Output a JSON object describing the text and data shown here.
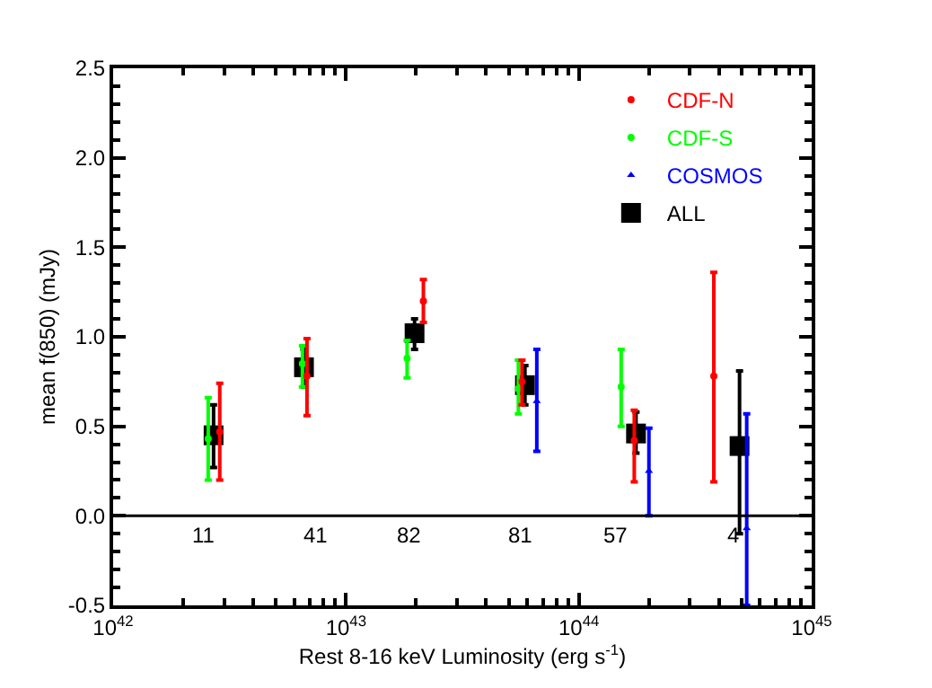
{
  "chart_data": {
    "type": "scatter",
    "xlabel": "Rest 8-16 keV Luminosity (erg s$^{-1}$)",
    "ylabel": "mean f(850) (mJy)",
    "log": "x",
    "legend": "top right",
    "xlim": [
      1e+42,
      1e+45
    ],
    "xticks": [
      {
        "value": 1e+42,
        "label": "10$^{42}$"
      },
      {
        "value": 1e+43,
        "label": "10$^{43}$"
      },
      {
        "value": 1e+44,
        "label": "10$^{44}$"
      },
      {
        "value": 1e+45,
        "label": "10$^{45}$"
      }
    ],
    "ylim": [
      -0.5,
      2.5
    ],
    "yticks": [
      {
        "value": -0.5,
        "label": "-0.5"
      },
      {
        "value": 0,
        "label": "0.0"
      },
      {
        "value": 0.5,
        "label": "0.5"
      },
      {
        "value": 1,
        "label": "1.0"
      },
      {
        "value": 1.5,
        "label": "1.5"
      },
      {
        "value": 2,
        "label": "2.0"
      },
      {
        "value": 2.5,
        "label": "2.5"
      }
    ],
    "series": [
      {
        "name": "CDF-N",
        "color": "#ff0000",
        "marker": "circle",
        "x": [
          2.87e+42,
          6.8e+42,
          2.15e+43,
          5.7e+43,
          1.73e+44,
          3.8e+44
        ],
        "values": [
          0.47,
          0.78,
          1.2,
          0.75,
          0.42,
          0.78
        ],
        "errors": [
          [
            0.2,
            0.74
          ],
          [
            0.56,
            0.99
          ],
          [
            1.08,
            1.32
          ],
          [
            0.62,
            0.87
          ],
          [
            0.19,
            0.59
          ],
          [
            0.19,
            1.36
          ]
        ]
      },
      {
        "name": "CDF-S",
        "color": "#00ff00",
        "marker": "circle",
        "x": [
          2.56e+42,
          6.5e+42,
          1.83e+43,
          5.5e+43,
          1.52e+44
        ],
        "values": [
          0.43,
          0.85,
          0.88,
          0.71,
          0.72
        ],
        "errors": [
          [
            0.2,
            0.66
          ],
          [
            0.72,
            0.95
          ],
          [
            0.77,
            0.98
          ],
          [
            0.57,
            0.87
          ],
          [
            0.5,
            0.93
          ]
        ]
      },
      {
        "name": "COSMOS",
        "color": "#0000ff",
        "marker": "triangle",
        "x": [
          6.6e+43,
          2e+44,
          5.26e+44
        ],
        "values": [
          0.64,
          0.25,
          -0.07
        ],
        "errors": [
          [
            0.36,
            0.93
          ],
          [
            0.0,
            0.49
          ],
          [
            -0.5,
            0.57
          ]
        ]
      },
      {
        "name": "ALL",
        "color": "#000000",
        "marker": "square",
        "x": [
          2.7e+42,
          6.6e+42,
          1.97e+43,
          5.87e+43,
          1.76e+44,
          4.9e+44
        ],
        "values": [
          0.45,
          0.83,
          1.02,
          0.73,
          0.46,
          0.39
        ],
        "errors": [
          [
            0.27,
            0.62
          ],
          [
            0.72,
            0.93
          ],
          [
            0.93,
            1.1
          ],
          [
            0.62,
            0.84
          ],
          [
            0.35,
            0.58
          ],
          [
            -0.1,
            0.81
          ]
        ]
      }
    ],
    "ref_lines": [
      {
        "axis": "y",
        "value": 0,
        "color": "#000000"
      }
    ],
    "annotations": [
      "11",
      "41",
      "82",
      "81",
      "57",
      "4"
    ]
  }
}
